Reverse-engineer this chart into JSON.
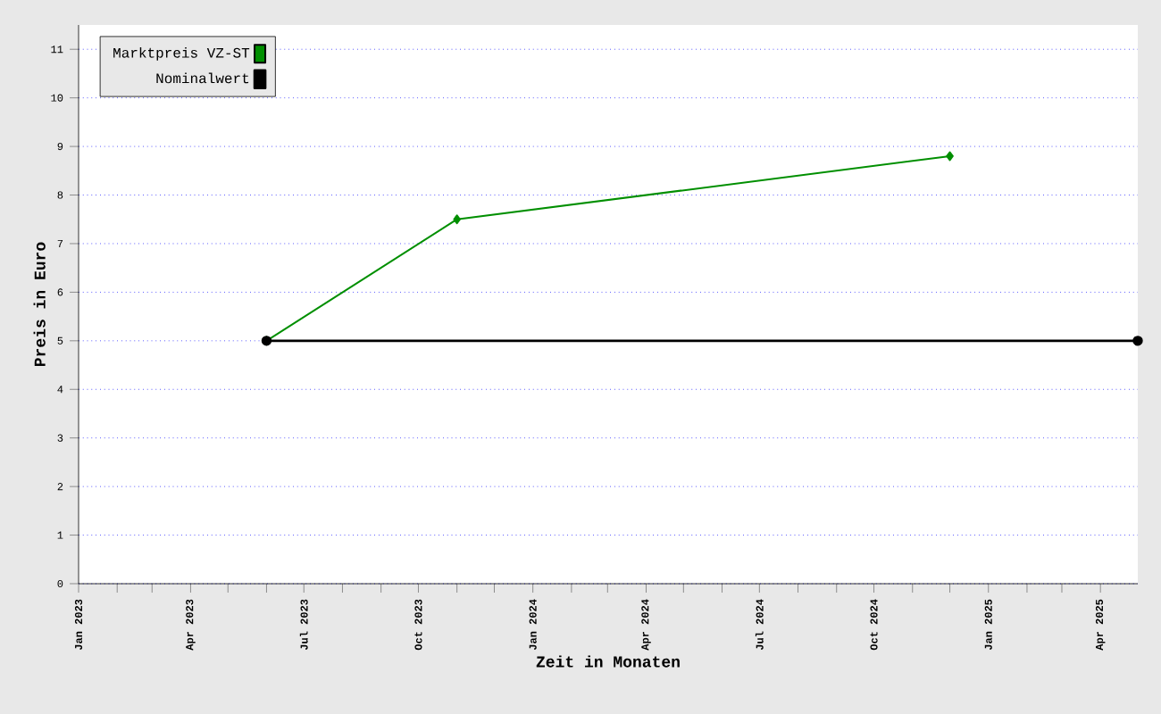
{
  "chart_data": {
    "type": "line",
    "xlabel": "Zeit in Monaten",
    "ylabel": "Preis in Euro",
    "xlim": [
      "2023-01",
      "2025-05"
    ],
    "ylim": [
      0,
      11.5
    ],
    "xticks": [
      {
        "value": "2023-01",
        "label": "Jan 2023"
      },
      {
        "value": "2023-02",
        "label": null
      },
      {
        "value": "2023-03",
        "label": null
      },
      {
        "value": "2023-04",
        "label": "Apr 2023"
      },
      {
        "value": "2023-05",
        "label": null
      },
      {
        "value": "2023-06",
        "label": null
      },
      {
        "value": "2023-07",
        "label": "Jul 2023"
      },
      {
        "value": "2023-08",
        "label": null
      },
      {
        "value": "2023-09",
        "label": null
      },
      {
        "value": "2023-10",
        "label": "Oct 2023"
      },
      {
        "value": "2023-11",
        "label": null
      },
      {
        "value": "2023-12",
        "label": null
      },
      {
        "value": "2024-01",
        "label": "Jan 2024"
      },
      {
        "value": "2024-02",
        "label": null
      },
      {
        "value": "2024-03",
        "label": null
      },
      {
        "value": "2024-04",
        "label": "Apr 2024"
      },
      {
        "value": "2024-05",
        "label": null
      },
      {
        "value": "2024-06",
        "label": null
      },
      {
        "value": "2024-07",
        "label": "Jul 2024"
      },
      {
        "value": "2024-08",
        "label": null
      },
      {
        "value": "2024-09",
        "label": null
      },
      {
        "value": "2024-10",
        "label": "Oct 2024"
      },
      {
        "value": "2024-11",
        "label": null
      },
      {
        "value": "2024-12",
        "label": null
      },
      {
        "value": "2025-01",
        "label": "Jan 2025"
      },
      {
        "value": "2025-02",
        "label": null
      },
      {
        "value": "2025-03",
        "label": null
      },
      {
        "value": "2025-04",
        "label": "Apr 2025"
      }
    ],
    "yticks": [
      0,
      1,
      2,
      3,
      4,
      5,
      6,
      7,
      8,
      9,
      10,
      11
    ],
    "grid": "y",
    "legend": "top left",
    "series": [
      {
        "name": "Marktpreis VZ-ST",
        "color": "#008f00",
        "marker": "diamond",
        "x": [
          "2023-06",
          "2023-11",
          "2024-12"
        ],
        "values": [
          5,
          7.5,
          8.8
        ]
      },
      {
        "name": "Nominalwert",
        "color": "#000000",
        "marker": "circle",
        "x": [
          "2023-06",
          "2025-05"
        ],
        "values": [
          5,
          5
        ]
      }
    ]
  }
}
